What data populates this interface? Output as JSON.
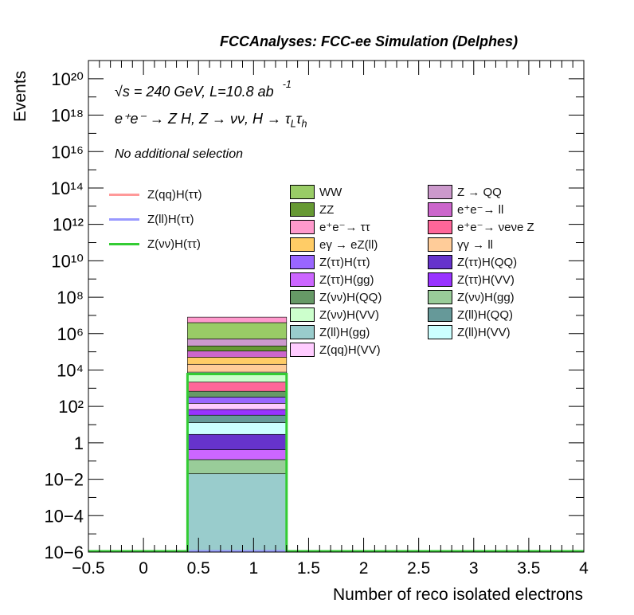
{
  "header": {
    "title": "FCCAnalyses: FCC-ee Simulation (Delphes)"
  },
  "annotations": {
    "energy_label": "√s = 240 GeV, L=10.8 ab",
    "energy_sup": "-1",
    "process_label": "e⁺e⁻ → Z H, Z → νν, H → τ",
    "process_sub1": "L",
    "process_tau": "τ",
    "process_sub2": "h",
    "selection_label": "No additional selection"
  },
  "chart_data": {
    "type": "bar",
    "stacked": true,
    "log_y": true,
    "xlabel": "Number of reco isolated electrons",
    "ylabel": "Events",
    "xlim": [
      -0.5,
      4
    ],
    "ylim": [
      1e-06,
      1e+21
    ],
    "bin": [
      0.4,
      1.3
    ],
    "x_tick_labels": [
      "−0.5",
      "0",
      "0.5",
      "1",
      "1.5",
      "2",
      "2.5",
      "3",
      "3.5",
      "4"
    ],
    "y_tick_labels": [
      "10−6",
      "10−4",
      "10−2",
      "1",
      "10²",
      "10⁴",
      "10⁶",
      "10⁸",
      "10¹⁰",
      "10¹²",
      "10¹⁴",
      "10¹⁶",
      "10¹⁸",
      "10²⁰"
    ],
    "grid": false,
    "legend_position": "center-right",
    "stack": [
      {
        "name": "Z(ll)H(gg)",
        "value": 0.02,
        "color": "#99cccc"
      },
      {
        "name": "Z(νν)H(gg)",
        "value": 0.1,
        "color": "#99cc99"
      },
      {
        "name": "Z(ττ)H(gg)",
        "value": 0.3,
        "color": "#cc66ff"
      },
      {
        "name": "Z(ττ)H(QQ)",
        "value": 2.5,
        "color": "#6633cc"
      },
      {
        "name": "Z(ll)H(VV)",
        "value": 10,
        "color": "#ccffff"
      },
      {
        "name": "Z(ll)H(QQ)",
        "value": 20,
        "color": "#669999"
      },
      {
        "name": "Z(ττ)H(VV)",
        "value": 35,
        "color": "#9933ff"
      },
      {
        "name": "Z(qq)H(VV)",
        "value": 80,
        "color": "#ffccff"
      },
      {
        "name": "Z(ττ)H(ττ)",
        "value": 180,
        "color": "#9966ff"
      },
      {
        "name": "Z(νν)H(QQ)",
        "value": 350,
        "color": "#669966"
      },
      {
        "name": "e⁺e⁻→ ν_eν_e Z",
        "value": 1500,
        "color": "#ff6699"
      },
      {
        "name": "Z(νν)H(VV)",
        "value": 5500,
        "color": "#ccffcc"
      },
      {
        "name": "γγ → ll",
        "value": 13000,
        "color": "#ffcc99"
      },
      {
        "name": "eγ → eZ(ll)",
        "value": 30000,
        "color": "#ffcc66"
      },
      {
        "name": "e⁺e⁻→ ll",
        "value": 60000,
        "color": "#cc66cc"
      },
      {
        "name": "ZZ",
        "value": 100000,
        "color": "#669933"
      },
      {
        "name": "Z → QQ",
        "value": 300000,
        "color": "#cc99cc"
      },
      {
        "name": "WW",
        "value": 3500000,
        "color": "#99cc66"
      },
      {
        "name": "e⁺e⁻→ ττ",
        "value": 4000000,
        "color": "#ff99cc"
      }
    ],
    "signal_lines": [
      {
        "name": "Z(qq)H(ττ)",
        "value": 9e-07,
        "color": "#ff9999"
      },
      {
        "name": "Z(ll)H(ττ)",
        "value": 9e-07,
        "color": "#9999ff"
      },
      {
        "name": "Z(νν)H(ττ)",
        "value": 6000,
        "color": "#33cc33"
      }
    ]
  },
  "legend": {
    "lines": [
      {
        "label": "Z(qq)H(ττ)",
        "color": "#ff9999"
      },
      {
        "label": "Z(ll)H(ττ)",
        "color": "#9999ff"
      },
      {
        "label": "Z(νν)H(ττ)",
        "color": "#33cc33"
      }
    ],
    "col1": [
      {
        "label": "WW",
        "color": "#99cc66"
      },
      {
        "label": "ZZ",
        "color": "#669933"
      },
      {
        "label": "e⁺e⁻→ ττ",
        "color": "#ff99cc"
      },
      {
        "label": "eγ → eZ(ll)",
        "color": "#ffcc66"
      },
      {
        "label": "Z(ττ)H(ττ)",
        "color": "#9966ff"
      },
      {
        "label": "Z(ττ)H(gg)",
        "color": "#cc66ff"
      },
      {
        "label": "Z(νν)H(QQ)",
        "color": "#669966"
      },
      {
        "label": "Z(νν)H(VV)",
        "color": "#ccffcc"
      },
      {
        "label": "Z(ll)H(gg)",
        "color": "#99cccc"
      },
      {
        "label": "Z(qq)H(VV)",
        "color": "#ffccff"
      }
    ],
    "col2": [
      {
        "label": "Z → QQ",
        "color": "#cc99cc"
      },
      {
        "label": "e⁺e⁻→ ll",
        "color": "#cc66cc"
      },
      {
        "label": "e⁺e⁻→ νeνe Z",
        "color": "#ff6699"
      },
      {
        "label": "γγ → ll",
        "color": "#ffcc99"
      },
      {
        "label": "Z(ττ)H(QQ)",
        "color": "#6633cc"
      },
      {
        "label": "Z(ττ)H(VV)",
        "color": "#9933ff"
      },
      {
        "label": "Z(νν)H(gg)",
        "color": "#99cc99"
      },
      {
        "label": "Z(ll)H(QQ)",
        "color": "#669999"
      },
      {
        "label": "Z(ll)H(VV)",
        "color": "#ccffff"
      }
    ]
  }
}
